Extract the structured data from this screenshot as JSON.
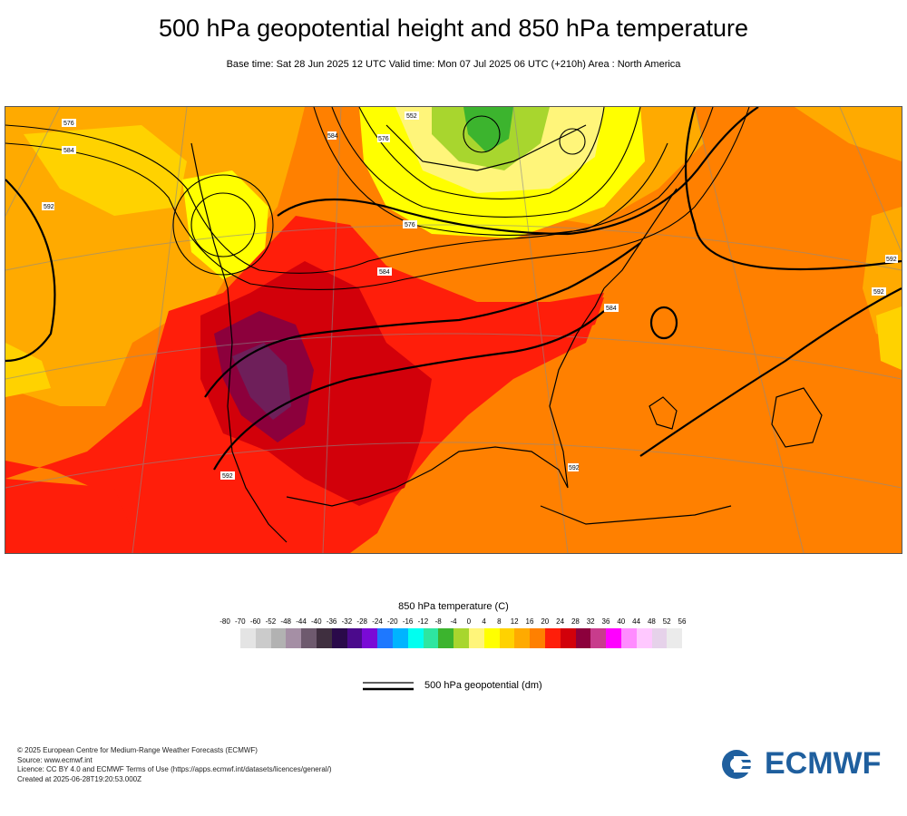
{
  "header": {
    "title": "500 hPa geopotential height and 850 hPa temperature",
    "subtitle": "Base time: Sat 28 Jun 2025 12 UTC Valid time: Mon 07 Jul 2025 06 UTC (+210h) Area : North America"
  },
  "map": {
    "region": "North America",
    "contour_labels": [
      "576",
      "584",
      "592",
      "584",
      "576",
      "552",
      "584",
      "592",
      "592",
      "592",
      "592",
      "584",
      "576"
    ]
  },
  "legend": {
    "title": "850 hPa temperature (C)",
    "ticks": [
      "-80",
      "-70",
      "-60",
      "-52",
      "-48",
      "-44",
      "-40",
      "-36",
      "-32",
      "-28",
      "-24",
      "-20",
      "-16",
      "-12",
      "-8",
      "-4",
      "0",
      "4",
      "8",
      "12",
      "16",
      "20",
      "24",
      "28",
      "32",
      "36",
      "40",
      "44",
      "48",
      "52",
      "56"
    ],
    "colors": [
      "#e4e4e4",
      "#cbcbcb",
      "#b2b2b2",
      "#a58fa5",
      "#6e5a6e",
      "#3f2f3f",
      "#2a0a4a",
      "#4b0a8c",
      "#7a0ad6",
      "#1e78ff",
      "#00b4ff",
      "#00fff0",
      "#2ee6a0",
      "#3cb42e",
      "#a8d62e",
      "#fff57a",
      "#ffff00",
      "#ffd200",
      "#ffaa00",
      "#ff8000",
      "#ff1e0a",
      "#d2000a",
      "#8c003c",
      "#c83c8c",
      "#ff00ff",
      "#ff8cff",
      "#ffc8ff",
      "#e6d2ea",
      "#ebebeb"
    ],
    "contour_label": "500 hPa geopotential (dm)"
  },
  "credits": {
    "line1": "© 2025 European Centre for Medium-Range Weather Forecasts (ECMWF)",
    "line2": "Source: www.ecmwf.int",
    "line3": "Licence: CC BY 4.0 and ECMWF Terms of Use (https://apps.ecmwf.int/datasets/licences/general/)",
    "line4": "Created at 2025-06-28T19:20:53.000Z"
  },
  "logo": {
    "text": "ECMWF",
    "color": "#1f5f9e"
  }
}
